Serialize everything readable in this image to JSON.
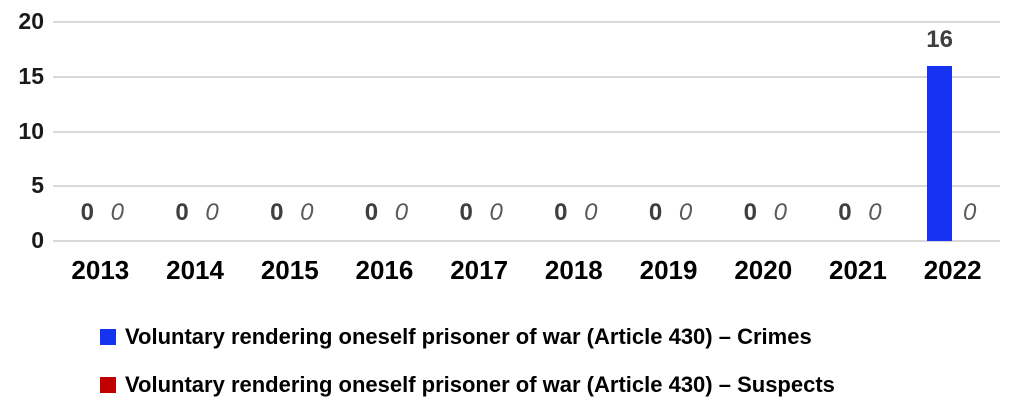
{
  "chart_data": {
    "type": "bar",
    "title": "",
    "xlabel": "",
    "ylabel": "",
    "categories": [
      "2013",
      "2014",
      "2015",
      "2016",
      "2017",
      "2018",
      "2019",
      "2020",
      "2021",
      "2022"
    ],
    "series": [
      {
        "name": "Voluntary rendering oneself prisoner of war (Article 430) – Crimes",
        "color": "#1733f2",
        "values": [
          0,
          0,
          0,
          0,
          0,
          0,
          0,
          0,
          0,
          16
        ],
        "label_style": "bold"
      },
      {
        "name": "Voluntary rendering oneself prisoner of war (Article 430) – Suspects",
        "color": "#c00000",
        "values": [
          0,
          0,
          0,
          0,
          0,
          0,
          0,
          0,
          0,
          0
        ],
        "label_style": "italic"
      }
    ],
    "ylim": [
      0,
      20
    ],
    "yticks": [
      0,
      5,
      10,
      15,
      20
    ],
    "grid": true,
    "data_labels_shown": true,
    "legend_position": "bottom-left",
    "gridline_color": "#d9d9d9",
    "background_color": "#ffffff"
  }
}
